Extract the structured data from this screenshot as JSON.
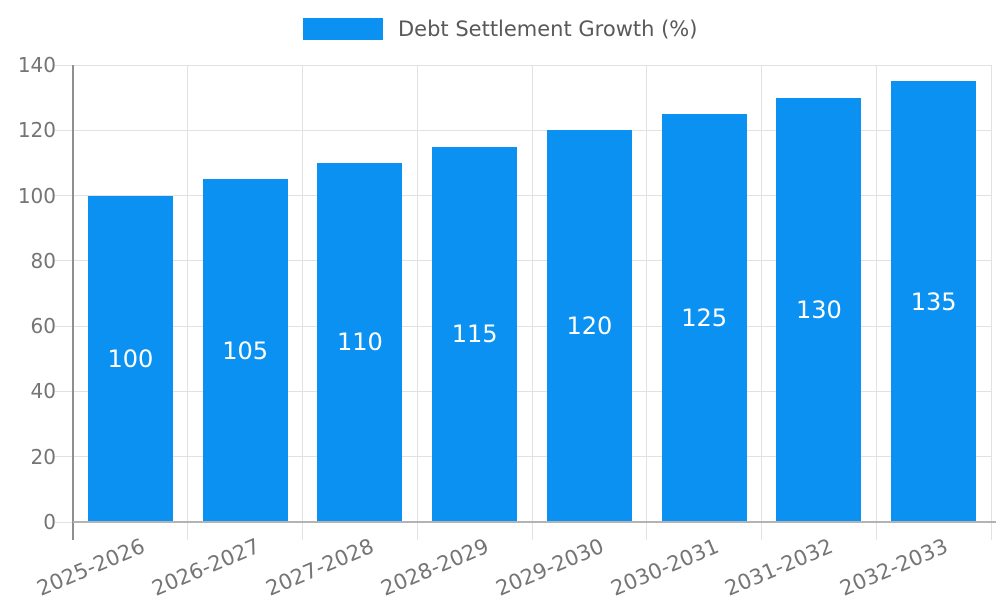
{
  "legend": {
    "label": "Debt Settlement Growth (%)",
    "swatch_color": "#0a91f2"
  },
  "chart_data": {
    "type": "bar",
    "title": "",
    "categories": [
      "2025-2026",
      "2026-2027",
      "2027-2028",
      "2028-2029",
      "2029-2030",
      "2030-2031",
      "2031-2032",
      "2032-2033"
    ],
    "series": [
      {
        "name": "Debt Settlement Growth (%)",
        "values": [
          100,
          105,
          110,
          115,
          120,
          125,
          130,
          135
        ]
      }
    ],
    "bar_labels": [
      "100",
      "105",
      "110",
      "115",
      "120",
      "125",
      "130",
      "135"
    ],
    "xlabel": "",
    "ylabel": "",
    "ylim": [
      0,
      140
    ],
    "yticks": [
      0,
      20,
      40,
      60,
      80,
      100,
      120,
      140
    ],
    "grid": "both",
    "legend_position": "top-center",
    "x_label_rotation_deg": -23,
    "colors": {
      "bar": "#0a91f2",
      "bar_label": "#ffffff",
      "axis_text": "#757575",
      "legend_text": "#58595b",
      "gridline": "#e2e2e2",
      "y_axis_line": "#8f8f8f",
      "x_axis_line": "#b3b3b3"
    }
  }
}
